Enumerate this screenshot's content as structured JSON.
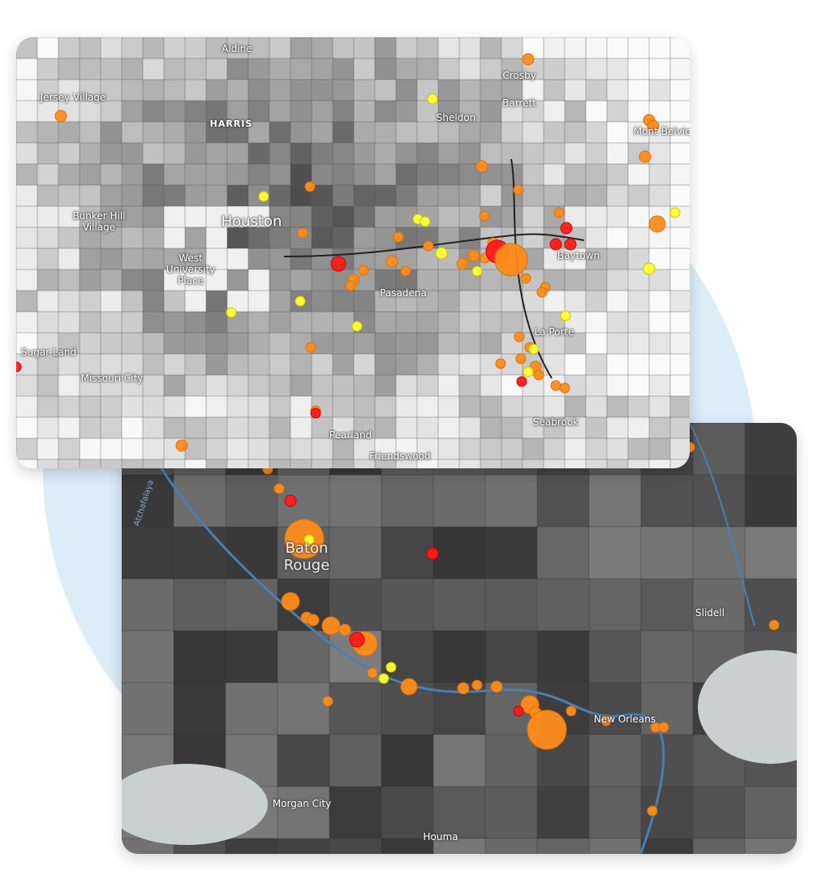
{
  "maps": [
    {
      "labels": [
        "Aldine",
        "Jersey Village",
        "Crosby",
        "Barrett",
        "Sheldon",
        "HARRIS",
        "Mont Belvieu",
        "Bunker Hill Village",
        "Houston",
        "West University Place",
        "Baytown",
        "Pasadena",
        "La Porte",
        "Sugar Land",
        "Missouri City",
        "Pearland",
        "Seabrook",
        "Friendswood"
      ]
    },
    {
      "labels": [
        "Atchafalaya",
        "Baton Rouge",
        "Slidell",
        "New Orleans",
        "Morgan City",
        "Houma"
      ]
    }
  ]
}
